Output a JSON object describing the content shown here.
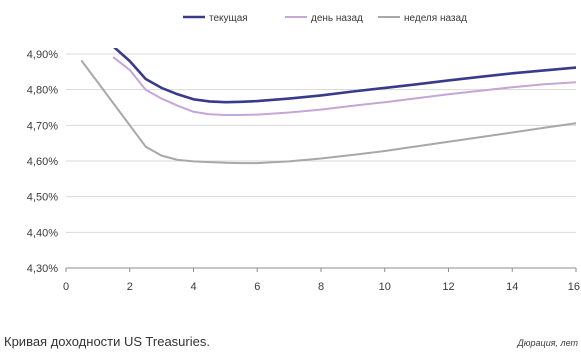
{
  "caption": "Кривая доходности US Treasuries.",
  "chart_data": {
    "type": "line",
    "xlabel": "Дюрация, лет",
    "ylabel": "",
    "xlim": [
      0,
      16
    ],
    "ylim": [
      4.3,
      4.9
    ],
    "xticks": [
      "0",
      "2",
      "4",
      "6",
      "8",
      "10",
      "12",
      "14",
      "16"
    ],
    "yticks": [
      "4,30%",
      "4,40%",
      "4,50%",
      "4,60%",
      "4,70%",
      "4,80%",
      "4,90%"
    ],
    "grid": "horizontal",
    "legend_position": "top",
    "series": [
      {
        "name": "текущая",
        "color": "#3a3a8c",
        "x": [
          1.5,
          2.0,
          2.5,
          3.0,
          3.5,
          4.0,
          4.5,
          5.0,
          5.5,
          6.0,
          7.0,
          8.0,
          9.0,
          10.0,
          11.0,
          12.0,
          13.0,
          14.0,
          15.0,
          16.0
        ],
        "y": [
          4.92,
          4.88,
          4.83,
          4.805,
          4.787,
          4.773,
          4.767,
          4.765,
          4.766,
          4.768,
          4.775,
          4.784,
          4.795,
          4.805,
          4.815,
          4.826,
          4.836,
          4.846,
          4.854,
          4.862
        ]
      },
      {
        "name": "день назад",
        "color": "#c6a6d6",
        "x": [
          1.5,
          2.0,
          2.5,
          3.0,
          3.5,
          4.0,
          4.5,
          5.0,
          5.5,
          6.0,
          7.0,
          8.0,
          9.0,
          10.0,
          11.0,
          12.0,
          13.0,
          14.0,
          15.0,
          16.0
        ],
        "y": [
          4.89,
          4.855,
          4.8,
          4.775,
          4.755,
          4.738,
          4.731,
          4.729,
          4.729,
          4.73,
          4.736,
          4.744,
          4.755,
          4.765,
          4.776,
          4.787,
          4.797,
          4.807,
          4.815,
          4.821
        ]
      },
      {
        "name": "неделя назад",
        "color": "#a8a8a8",
        "x": [
          0.5,
          1.0,
          1.5,
          2.0,
          2.5,
          3.0,
          3.5,
          4.0,
          4.5,
          5.0,
          5.5,
          6.0,
          7.0,
          8.0,
          9.0,
          10.0,
          11.0,
          12.0,
          13.0,
          14.0,
          15.0,
          16.0
        ],
        "y": [
          4.88,
          4.82,
          4.76,
          4.7,
          4.64,
          4.615,
          4.603,
          4.599,
          4.597,
          4.595,
          4.594,
          4.594,
          4.599,
          4.607,
          4.617,
          4.628,
          4.641,
          4.654,
          4.667,
          4.68,
          4.693,
          4.706
        ]
      }
    ]
  }
}
